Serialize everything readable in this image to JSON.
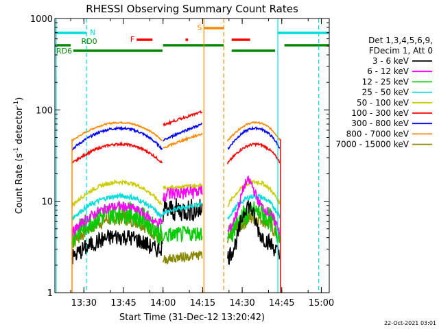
{
  "chart_data": {
    "type": "line",
    "title": "RHESSI Observing Summary Count Rates",
    "xlabel": "Start Time (31-Dec-12 13:20:42)",
    "ylabel_main": "Count Rate (s",
    "ylabel_sup1": "-1",
    "ylabel_mid": " detector",
    "ylabel_sup2": "-1",
    "ylabel_end": ")",
    "y_scale": "log",
    "ylim": [
      1,
      1000
    ],
    "xlim_minutes": [
      -1,
      103
    ],
    "x_ticks": [
      {
        "label": "13:30",
        "t": 10
      },
      {
        "label": "13:45",
        "t": 25
      },
      {
        "label": "14:00",
        "t": 40
      },
      {
        "label": "14:15",
        "t": 55
      },
      {
        "label": "14:30",
        "t": 70
      },
      {
        "label": "14:45",
        "t": 85
      },
      {
        "label": "15:00",
        "t": 100
      }
    ],
    "y_ticks": [
      {
        "label": "1",
        "v": 1
      },
      {
        "label": "10",
        "v": 10
      },
      {
        "label": "100",
        "v": 100
      },
      {
        "label": "1000",
        "v": 1000
      }
    ],
    "legend_header": [
      "Det 1,3,4,5,6,9,",
      "FDecim 1, Att 0"
    ],
    "legend_position": "right",
    "series": [
      {
        "name": "3 - 6 keV",
        "color": "#000000",
        "segments": [
          {
            "start": 5.5,
            "end": 39.8,
            "base": 2.4,
            "amp": 0.7,
            "noise": 0.22,
            "flare": [
              42,
              0.6,
              3
            ]
          },
          {
            "start": 64.5,
            "end": 84.5,
            "base": 2.4,
            "amp": 0.7,
            "noise": 0.22,
            "flare": [
              72,
              1.3,
              3
            ]
          }
        ]
      },
      {
        "name": "6 - 12 keV",
        "color": "#ff00ff",
        "segments": [
          {
            "start": 5.5,
            "end": 39.8,
            "base": 4.5,
            "amp": 0.95,
            "noise": 0.12,
            "flare": [
              42,
              0.6,
              3
            ]
          },
          {
            "start": 64.5,
            "end": 84.5,
            "base": 4.5,
            "amp": 0.95,
            "noise": 0.12,
            "flare": [
              72,
              1.0,
              3
            ]
          }
        ]
      },
      {
        "name": "12 - 25 keV",
        "color": "#00cc00",
        "segments": [
          {
            "start": 5.5,
            "end": 39.8,
            "base": 4.0,
            "amp": 0.9,
            "noise": 0.3
          },
          {
            "start": 64.5,
            "end": 84.5,
            "base": 4.0,
            "amp": 0.9,
            "noise": 0.3
          }
        ]
      },
      {
        "name": "25 - 50 keV",
        "color": "#00dddd",
        "segments": [
          {
            "start": 5.5,
            "end": 39.8,
            "base": 6.5,
            "amp": 0.75,
            "noise": 0.06
          },
          {
            "start": 64.5,
            "end": 84.5,
            "base": 6.5,
            "amp": 0.75,
            "noise": 0.06
          }
        ]
      },
      {
        "name": "50 - 100 keV",
        "color": "#cccc00",
        "segments": [
          {
            "start": 5.5,
            "end": 39.8,
            "base": 9.0,
            "amp": 0.8,
            "noise": 0.05
          },
          {
            "start": 64.5,
            "end": 84.5,
            "base": 9.0,
            "amp": 0.8,
            "noise": 0.05
          }
        ]
      },
      {
        "name": "100 - 300 keV",
        "color": "#ff0000",
        "segments": [
          {
            "start": 5.5,
            "end": 39.8,
            "base": 26,
            "amp": 0.62,
            "noise": 0.03
          },
          {
            "start": 64.5,
            "end": 84.5,
            "base": 26,
            "amp": 0.62,
            "noise": 0.03
          }
        ]
      },
      {
        "name": "300 - 800 keV",
        "color": "#0000ff",
        "segments": [
          {
            "start": 5.5,
            "end": 39.8,
            "base": 37,
            "amp": 0.7,
            "noise": 0.03
          },
          {
            "start": 64.5,
            "end": 84.5,
            "base": 37,
            "amp": 0.7,
            "noise": 0.03
          }
        ]
      },
      {
        "name": "800 - 7000 keV",
        "color": "#ff8800",
        "segments": [
          {
            "start": 5.5,
            "end": 39.8,
            "base": 46,
            "amp": 0.58,
            "noise": 0.02
          },
          {
            "start": 64.5,
            "end": 84.5,
            "base": 46,
            "amp": 0.58,
            "noise": 0.02
          }
        ]
      },
      {
        "name": "7000 - 15000 keV",
        "color": "#888800",
        "segments": [
          {
            "start": 5.5,
            "end": 39.8,
            "base": 3.5,
            "amp": 0.9,
            "noise": 0.2
          },
          {
            "start": 64.5,
            "end": 84.5,
            "base": 3.5,
            "amp": 0.9,
            "noise": 0.2
          }
        ]
      }
    ],
    "mid_segments": [
      {
        "series": "3 - 6 keV",
        "start": 40,
        "end": 55,
        "from": 8,
        "to": 8,
        "noise": 0.3
      },
      {
        "series": "6 - 12 keV",
        "start": 40,
        "end": 55,
        "from": 12,
        "to": 13,
        "noise": 0.2
      },
      {
        "series": "12 - 25 keV",
        "start": 40,
        "end": 55,
        "from": 4.2,
        "to": 4.5,
        "noise": 0.2
      },
      {
        "series": "25 - 50 keV",
        "start": 40,
        "end": 55,
        "from": 7.5,
        "to": 9.5,
        "noise": 0.06
      },
      {
        "series": "50 - 100 keV",
        "start": 40,
        "end": 55,
        "from": 14,
        "to": 15,
        "noise": 0.04
      },
      {
        "series": "100 - 300 keV",
        "start": 40,
        "end": 55,
        "from": 68,
        "to": 95,
        "noise": 0.03
      },
      {
        "series": "300 - 800 keV",
        "start": 40,
        "end": 55,
        "from": 46,
        "to": 70,
        "noise": 0.03
      },
      {
        "series": "800 - 7000 keV",
        "start": 40,
        "end": 55,
        "from": 38,
        "to": 55,
        "noise": 0.03
      },
      {
        "series": "7000 - 15000 keV",
        "start": 40,
        "end": 55,
        "from": 2.3,
        "to": 2.6,
        "noise": 0.12
      }
    ],
    "spikes": [
      {
        "t": 5.5,
        "from": 1,
        "to": 48,
        "color": "#ff8800"
      },
      {
        "t": 84.5,
        "from": 1,
        "to": 48,
        "color": "#ff0000"
      }
    ],
    "vertical_lines": [
      {
        "t": -0.5,
        "color": "#00dddd",
        "style": "solid"
      },
      {
        "t": 11,
        "color": "#00dddd",
        "style": "dashed"
      },
      {
        "t": 55.5,
        "color": "#ff8800",
        "style": "solid"
      },
      {
        "t": 63,
        "color": "#ff8800",
        "style": "dashed"
      },
      {
        "t": 83.5,
        "color": "#00dddd",
        "style": "solid"
      },
      {
        "t": 99,
        "color": "#00dddd",
        "style": "dashed"
      }
    ],
    "flag_bars": [
      {
        "label": "N",
        "color": "#00dddd",
        "row": 1,
        "label_side": "right",
        "ranges": [
          [
            -1,
            11
          ],
          [
            83.5,
            103
          ]
        ]
      },
      {
        "label": "S",
        "color": "#ff8800",
        "row": 0,
        "label_side": "left",
        "ranges": [
          [
            55.5,
            63
          ]
        ]
      },
      {
        "label": "F",
        "color": "#ff0000",
        "row": 2,
        "label_side": "left",
        "ranges": [
          [
            30,
            36
          ],
          [
            48.5,
            49.5
          ],
          [
            66,
            73
          ]
        ]
      },
      {
        "label": "RD0",
        "color": "#008800",
        "row": 3,
        "label_side": "right",
        "ranges": [
          [
            -1,
            5
          ],
          [
            40,
            63
          ],
          [
            86,
            103
          ]
        ]
      },
      {
        "label": "RD6",
        "color": "#008800",
        "row": 4,
        "label_side": "left",
        "ranges": [
          [
            6,
            39.8
          ],
          [
            66,
            82.5
          ]
        ]
      }
    ],
    "footer_date": "22-Oct-2021 03:01"
  }
}
